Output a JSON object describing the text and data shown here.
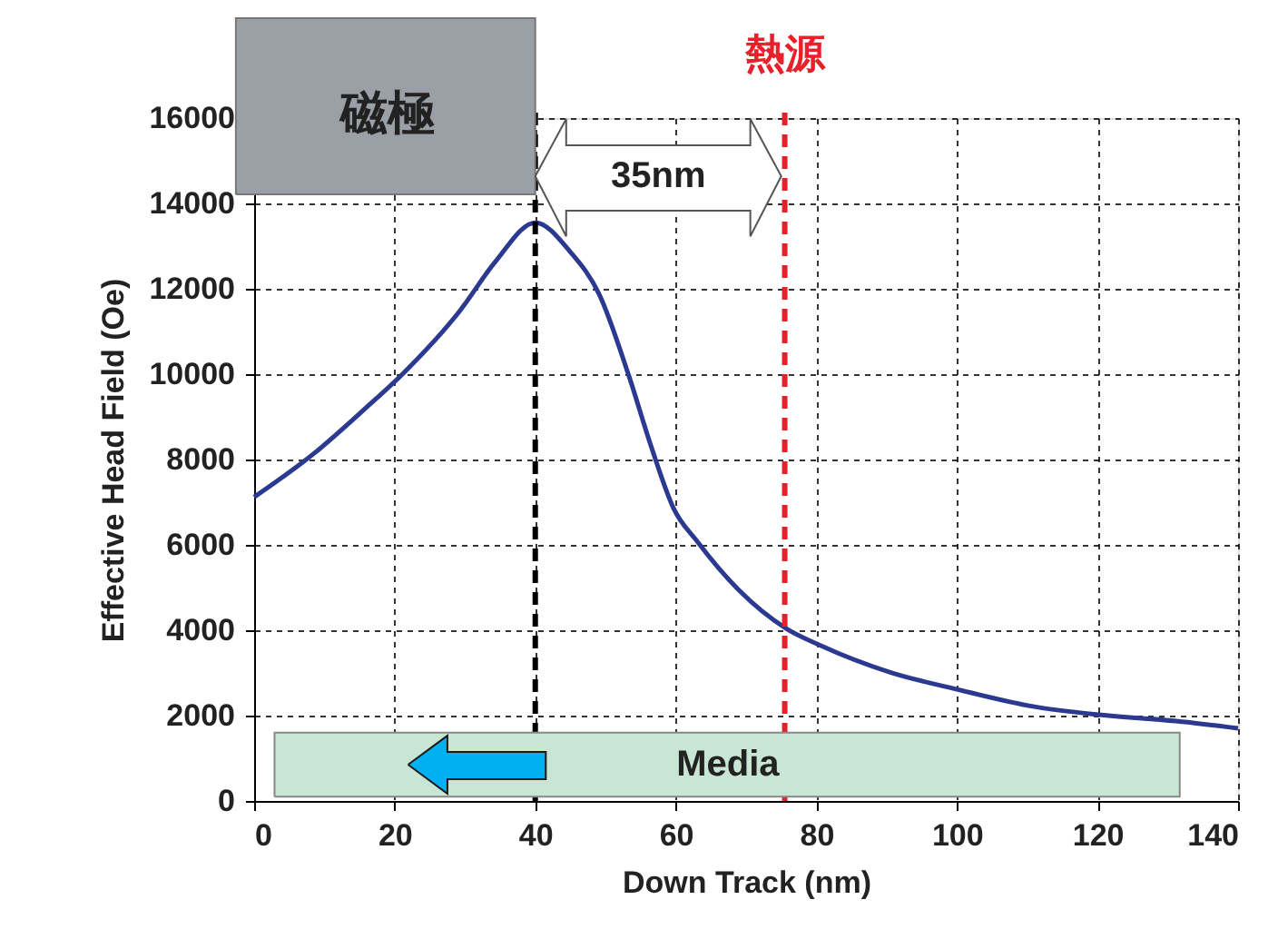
{
  "chart_data": {
    "type": "line",
    "xlabel": "Down Track (nm)",
    "ylabel": "Effective Head Field (Oe)",
    "x": [
      0,
      8.5,
      15.9,
      21.4,
      29.3,
      34.3,
      40,
      45,
      49.1,
      53.3,
      56.5,
      59.7,
      63,
      68.9,
      75.8,
      80.5,
      90.6,
      99.9,
      111,
      120.2,
      131.2,
      140
    ],
    "series": [
      {
        "color": "#2b3990",
        "values": [
          7120,
          8140,
          9210,
          10050,
          11490,
          12630,
          13550,
          12860,
          11870,
          9970,
          8300,
          6850,
          6090,
          4950,
          4030,
          3650,
          3010,
          2620,
          2210,
          2020,
          1870,
          1700
        ]
      }
    ],
    "xlim": [
      0,
      140
    ],
    "xticks": [
      0,
      20,
      40,
      60,
      80,
      100,
      120,
      140
    ],
    "ylim": [
      0,
      16000
    ],
    "yticks": [
      0,
      2000,
      4000,
      6000,
      8000,
      10000,
      12000,
      14000,
      16000
    ],
    "grid": true,
    "marker": "none",
    "line_style": "solid",
    "ref_lines": [
      {
        "axis": "x",
        "value": 40,
        "color": "#000000",
        "line_style": "dashed"
      },
      {
        "axis": "x",
        "value": 75.5,
        "label": "熱源",
        "color": "#e8202a",
        "line_style": "dashed"
      }
    ],
    "annotations": [
      "磁極",
      "35nm",
      "Media"
    ]
  }
}
